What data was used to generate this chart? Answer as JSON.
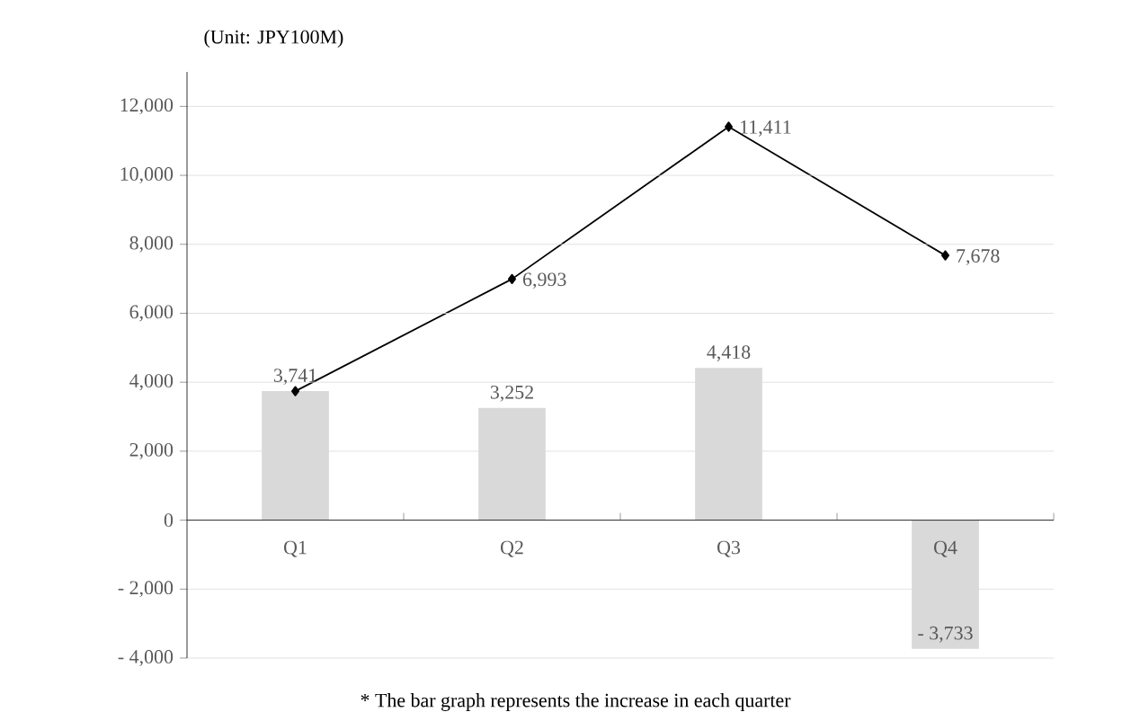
{
  "chart_data": {
    "type": "bar",
    "ylabel": "(Unit: JPY100M)",
    "categories": [
      "Q1",
      "Q2",
      "Q3",
      "Q4"
    ],
    "series": [
      {
        "color": "#d9d9d9",
        "values": [
          3741,
          3252,
          4418,
          -3733
        ],
        "value_labels": [
          "3,741",
          "3,252",
          "4,418",
          "- 3,733"
        ]
      },
      {
        "type": "line",
        "color": "#000000",
        "values": [
          3741,
          6993,
          11411,
          7678
        ],
        "value_labels": [
          null,
          "6,993",
          "11,411",
          "7,678"
        ]
      }
    ],
    "ylim": [
      -4000,
      13000
    ],
    "yticks": [
      {
        "value": -4000,
        "label": "- 4,000"
      },
      {
        "value": -2000,
        "label": "- 2,000"
      },
      0,
      {
        "value": 2000,
        "label": "2,000"
      },
      {
        "value": 4000,
        "label": "4,000"
      },
      {
        "value": 6000,
        "label": "6,000"
      },
      {
        "value": 8000,
        "label": "8,000"
      },
      {
        "value": 10000,
        "label": "10,000"
      },
      {
        "value": 12000,
        "label": "12,000"
      }
    ],
    "grid": "y",
    "marker": "diamond",
    "annotations": [
      "* The bar graph represents the increase in each quarter"
    ]
  }
}
